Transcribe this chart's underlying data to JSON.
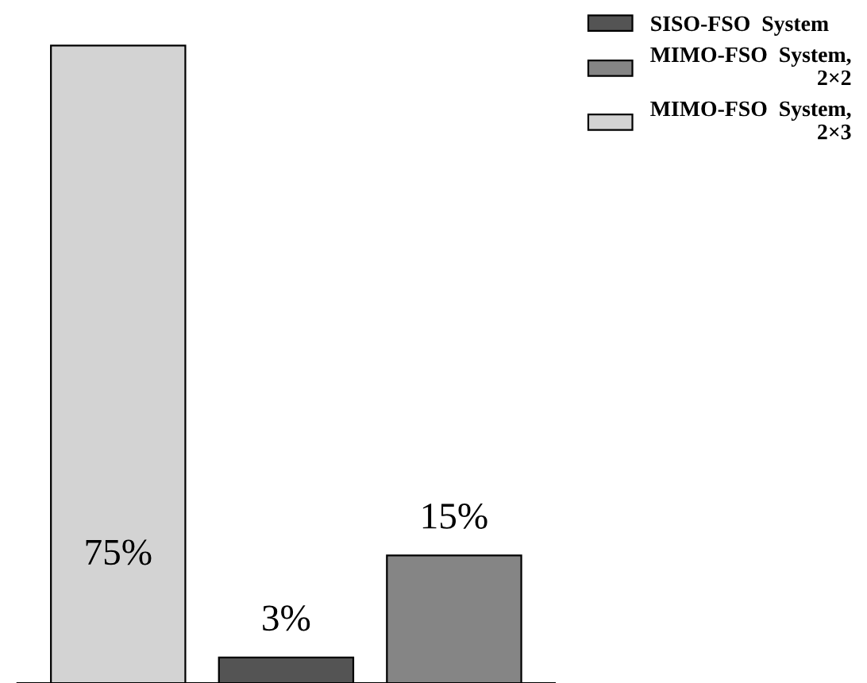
{
  "chart_data": {
    "type": "bar",
    "categories": [
      null,
      null,
      null
    ],
    "series": [
      {
        "name": "SISO-FSO  System",
        "color": "#545454",
        "values": [
          null,
          3,
          null
        ],
        "value_labels": [
          null,
          "3%",
          null
        ]
      },
      {
        "name": "MIMO-FSO  System,\n2×2",
        "color": "#858585",
        "values": [
          null,
          null,
          15
        ],
        "value_labels": [
          null,
          null,
          "15%"
        ]
      },
      {
        "name": "MIMO-FSO  System,\n2×3",
        "color": "#d3d3d3",
        "values": [
          75,
          null,
          null
        ],
        "value_labels": [
          "75%",
          null,
          null
        ]
      }
    ],
    "stacked": true,
    "legend": "top right",
    "grid": false
  }
}
